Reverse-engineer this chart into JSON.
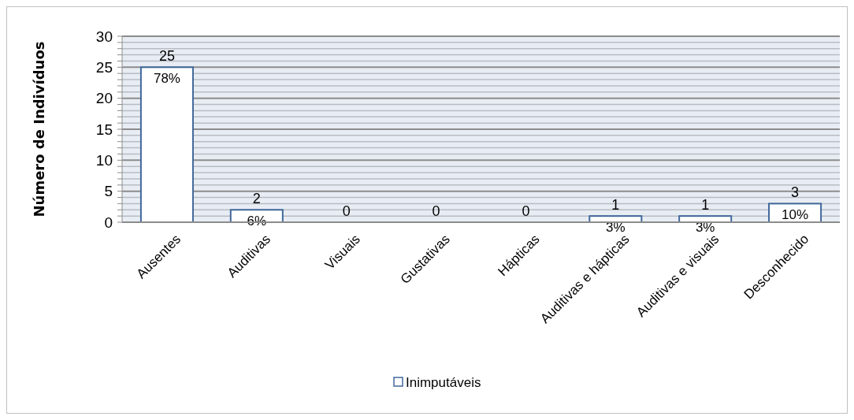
{
  "chart_data": {
    "type": "bar",
    "ylabel": "Número de Indivíduos",
    "categories": [
      "Ausentes",
      "Auditivas",
      "Visuais",
      "Gustativas",
      "Hápticas",
      "Auditivas e hápticas",
      "Auditivas e visuais",
      "Desconhecido"
    ],
    "series": [
      {
        "name": "Inimputáveis",
        "color": "#ffffff",
        "values": [
          25,
          2,
          0,
          0,
          0,
          1,
          1,
          3
        ],
        "value_labels": [
          "25",
          "2",
          "0",
          "0",
          "0",
          "1",
          "1",
          "3"
        ]
      }
    ],
    "annotations": [
      {
        "text": "78%",
        "x": "Ausentes",
        "y": 25
      },
      {
        "text": "6%",
        "x": "Auditivas",
        "y": 2
      },
      {
        "text": "3%",
        "x": "Auditivas e hápticas",
        "y": 1
      },
      {
        "text": "3%",
        "x": "Auditivas e visuais",
        "y": 1
      },
      {
        "text": "10%",
        "x": "Desconhecido",
        "y": 3
      }
    ],
    "ylim": [
      0,
      30
    ],
    "yticks": [
      0,
      {
        "value": 1,
        "label": null
      },
      {
        "value": 2,
        "label": null
      },
      {
        "value": 3,
        "label": null
      },
      {
        "value": 4,
        "label": null
      },
      5,
      {
        "value": 6,
        "label": null
      },
      {
        "value": 7,
        "label": null
      },
      {
        "value": 8,
        "label": null
      },
      {
        "value": 9,
        "label": null
      },
      10,
      {
        "value": 11,
        "label": null
      },
      {
        "value": 12,
        "label": null
      },
      {
        "value": 13,
        "label": null
      },
      {
        "value": 14,
        "label": null
      },
      15,
      {
        "value": 16,
        "label": null
      },
      {
        "value": 17,
        "label": null
      },
      {
        "value": 18,
        "label": null
      },
      {
        "value": 19,
        "label": null
      },
      20,
      {
        "value": 21,
        "label": null
      },
      {
        "value": 22,
        "label": null
      },
      {
        "value": 23,
        "label": null
      },
      {
        "value": 24,
        "label": null
      },
      25,
      {
        "value": 26,
        "label": null
      },
      {
        "value": 27,
        "label": null
      },
      {
        "value": 28,
        "label": null
      },
      {
        "value": 29,
        "label": null
      },
      30
    ],
    "grid": "y",
    "legend": "bottom"
  }
}
